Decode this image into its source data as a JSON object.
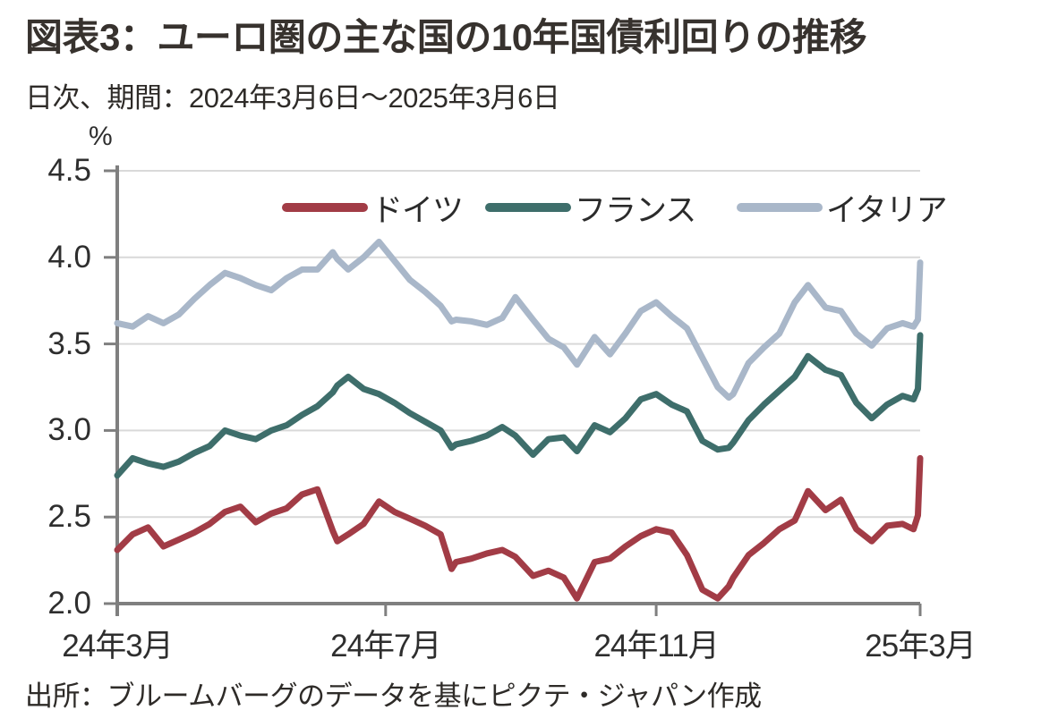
{
  "colors": {
    "axis": "#7f7f7f",
    "grid": "#d9d9d9",
    "text": "#2e2e2e",
    "title_text": "#37322e",
    "background": "#ffffff"
  },
  "chart_data": {
    "type": "line",
    "title": "図表3：ユーロ圏の主な国の10年国債利回りの推移",
    "subtitle": "日次、期間：2024年3月6日～2025年3月6日",
    "source": "出所：ブルームバーグのデータを基にピクテ・ジャパン作成",
    "unit_label": "%",
    "ylim": [
      2.0,
      4.5
    ],
    "yticks": [
      4.5,
      4.0,
      3.5,
      3.0,
      2.5,
      2.0
    ],
    "x_range": [
      "2024-03-06",
      "2025-03-06"
    ],
    "xticks": [
      {
        "label": "24年3月",
        "date": "2024-03-06"
      },
      {
        "label": "24年7月",
        "date": "2024-07-06"
      },
      {
        "label": "24年11月",
        "date": "2024-11-06"
      },
      {
        "label": "25年3月",
        "date": "2025-03-06"
      }
    ],
    "grid": true,
    "legend_position": "top-inside",
    "dates": [
      "2024-03-06",
      "2024-03-13",
      "2024-03-20",
      "2024-03-27",
      "2024-04-03",
      "2024-04-10",
      "2024-04-17",
      "2024-04-24",
      "2024-05-01",
      "2024-05-08",
      "2024-05-15",
      "2024-05-22",
      "2024-05-29",
      "2024-06-05",
      "2024-06-12",
      "2024-06-14",
      "2024-06-19",
      "2024-06-26",
      "2024-07-03",
      "2024-07-10",
      "2024-07-17",
      "2024-07-24",
      "2024-07-31",
      "2024-08-05",
      "2024-08-07",
      "2024-08-14",
      "2024-08-21",
      "2024-08-28",
      "2024-09-03",
      "2024-09-11",
      "2024-09-18",
      "2024-09-25",
      "2024-10-01",
      "2024-10-09",
      "2024-10-16",
      "2024-10-23",
      "2024-10-30",
      "2024-11-06",
      "2024-11-13",
      "2024-11-20",
      "2024-11-27",
      "2024-12-04",
      "2024-12-09",
      "2024-12-11",
      "2024-12-18",
      "2024-12-25",
      "2025-01-01",
      "2025-01-08",
      "2025-01-14",
      "2025-01-22",
      "2025-01-29",
      "2025-02-05",
      "2025-02-12",
      "2025-02-19",
      "2025-02-26",
      "2025-03-03",
      "2025-03-05",
      "2025-03-06"
    ],
    "series": [
      {
        "key": "germany",
        "name": "ドイツ",
        "color": "#a23c46",
        "values": [
          2.31,
          2.4,
          2.44,
          2.33,
          2.37,
          2.41,
          2.46,
          2.53,
          2.56,
          2.47,
          2.52,
          2.55,
          2.63,
          2.66,
          2.42,
          2.36,
          2.4,
          2.46,
          2.59,
          2.53,
          2.49,
          2.45,
          2.4,
          2.2,
          2.24,
          2.26,
          2.29,
          2.31,
          2.27,
          2.16,
          2.19,
          2.15,
          2.03,
          2.24,
          2.26,
          2.33,
          2.39,
          2.43,
          2.41,
          2.28,
          2.08,
          2.03,
          2.1,
          2.15,
          2.28,
          2.35,
          2.43,
          2.48,
          2.65,
          2.54,
          2.6,
          2.43,
          2.36,
          2.45,
          2.46,
          2.43,
          2.51,
          2.84
        ]
      },
      {
        "key": "france",
        "name": "フランス",
        "color": "#3e6e6b",
        "values": [
          2.74,
          2.84,
          2.81,
          2.79,
          2.82,
          2.87,
          2.91,
          3.0,
          2.97,
          2.95,
          3.0,
          3.03,
          3.09,
          3.14,
          3.22,
          3.26,
          3.31,
          3.24,
          3.21,
          3.16,
          3.1,
          3.05,
          3.0,
          2.9,
          2.92,
          2.94,
          2.97,
          3.02,
          2.97,
          2.86,
          2.95,
          2.96,
          2.88,
          3.03,
          2.99,
          3.07,
          3.18,
          3.21,
          3.15,
          3.11,
          2.94,
          2.89,
          2.9,
          2.93,
          3.06,
          3.15,
          3.23,
          3.31,
          3.43,
          3.35,
          3.32,
          3.16,
          3.07,
          3.15,
          3.2,
          3.18,
          3.24,
          3.55
        ]
      },
      {
        "key": "italy",
        "name": "イタリア",
        "color": "#a9b7c9",
        "values": [
          3.62,
          3.6,
          3.66,
          3.62,
          3.67,
          3.76,
          3.84,
          3.91,
          3.88,
          3.84,
          3.81,
          3.88,
          3.93,
          3.93,
          4.03,
          3.99,
          3.93,
          4.0,
          4.09,
          3.98,
          3.87,
          3.8,
          3.72,
          3.63,
          3.64,
          3.63,
          3.61,
          3.65,
          3.77,
          3.64,
          3.53,
          3.48,
          3.38,
          3.54,
          3.44,
          3.56,
          3.69,
          3.74,
          3.66,
          3.59,
          3.42,
          3.25,
          3.19,
          3.21,
          3.39,
          3.48,
          3.56,
          3.74,
          3.84,
          3.71,
          3.69,
          3.56,
          3.49,
          3.59,
          3.62,
          3.6,
          3.64,
          3.97
        ]
      }
    ]
  }
}
